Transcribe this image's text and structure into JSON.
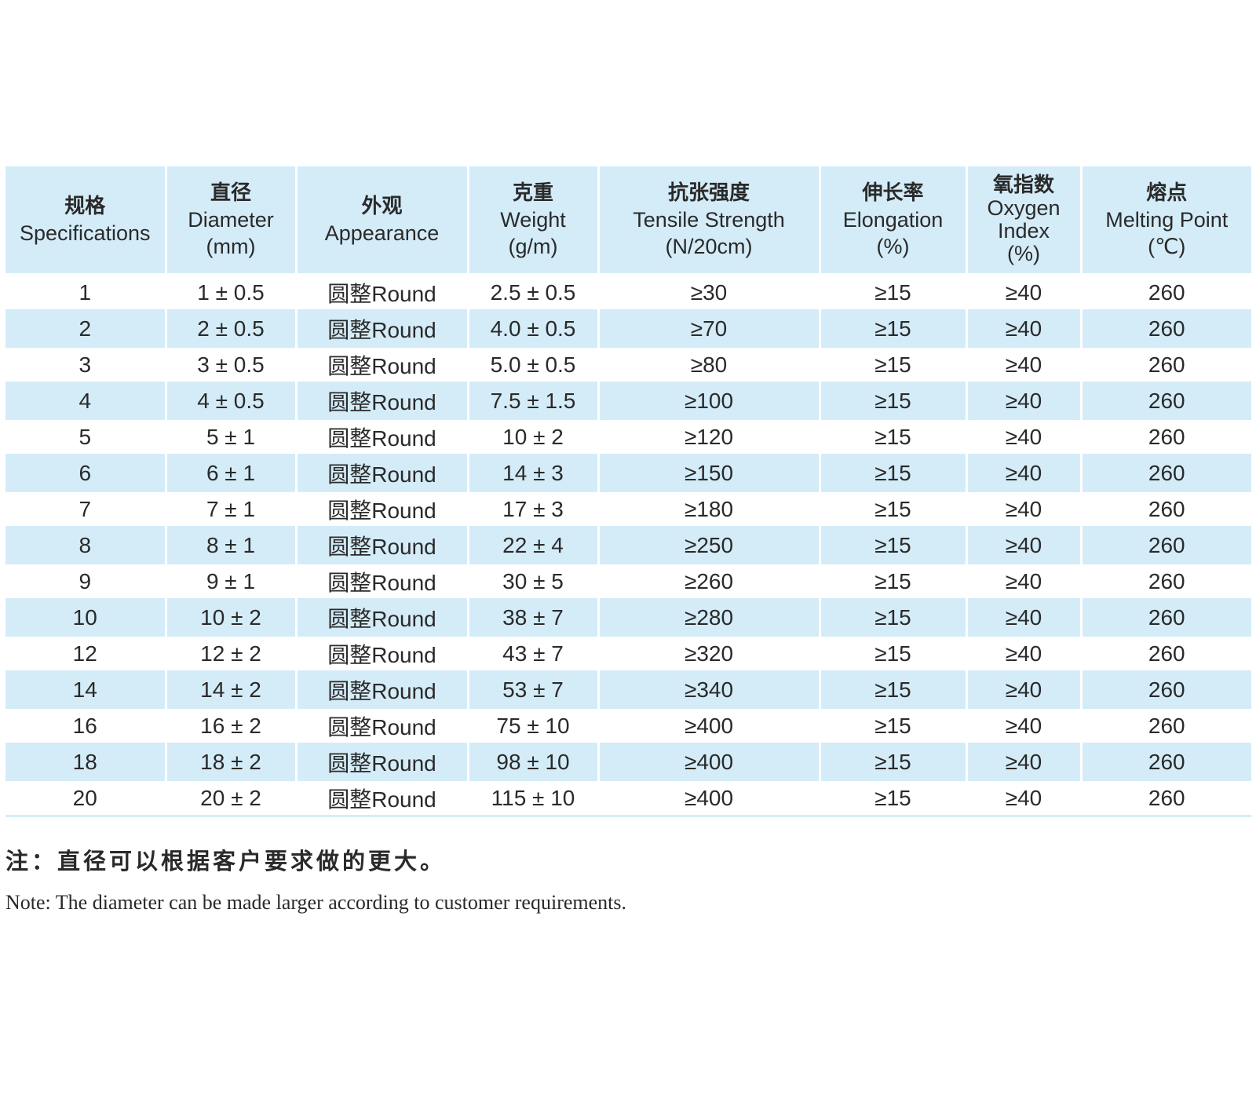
{
  "table": {
    "headers": [
      {
        "zh": "规格",
        "en": [
          "Specifications"
        ]
      },
      {
        "zh": "直径",
        "en": [
          "Diameter",
          "(mm)"
        ]
      },
      {
        "zh": "外观",
        "en": [
          "Appearance"
        ]
      },
      {
        "zh": "克重",
        "en": [
          "Weight",
          "(g/m)"
        ]
      },
      {
        "zh": "抗张强度",
        "en": [
          "Tensile  Strength",
          "(N/20cm)"
        ]
      },
      {
        "zh": "伸长率",
        "en": [
          "Elongation",
          "(%)"
        ]
      },
      {
        "zh": "氧指数",
        "en": [
          "Oxygen",
          "Index",
          "(%)"
        ]
      },
      {
        "zh": "熔点",
        "en": [
          "Melting Point",
          "(℃)"
        ]
      }
    ],
    "rows": [
      [
        "1",
        "1 ± 0.5",
        "圆整Round",
        "2.5 ± 0.5",
        "≥30",
        "≥15",
        "≥40",
        "260"
      ],
      [
        "2",
        "2 ± 0.5",
        "圆整Round",
        "4.0 ± 0.5",
        "≥70",
        "≥15",
        "≥40",
        "260"
      ],
      [
        "3",
        "3 ± 0.5",
        "圆整Round",
        "5.0 ±  0.5",
        "≥80",
        "≥15",
        "≥40",
        "260"
      ],
      [
        "4",
        "4 ± 0.5",
        "圆整Round",
        "7.5 ± 1.5",
        "≥100",
        "≥15",
        "≥40",
        "260"
      ],
      [
        "5",
        "5  ±  1",
        "圆整Round",
        "10 ± 2",
        "≥120",
        "≥15",
        "≥40",
        "260"
      ],
      [
        "6",
        "6 ± 1",
        "圆整Round",
        "14 ± 3",
        "≥150",
        "≥15",
        "≥40",
        "260"
      ],
      [
        "7",
        "7 ± 1",
        "圆整Round",
        "17 ± 3",
        "≥180",
        "≥15",
        "≥40",
        "260"
      ],
      [
        "8",
        "8 ± 1",
        "圆整Round",
        "22 ± 4",
        "≥250",
        "≥15",
        "≥40",
        "260"
      ],
      [
        "9",
        "9 ± 1",
        "圆整Round",
        "30 ± 5",
        "≥260",
        "≥15",
        "≥40",
        "260"
      ],
      [
        "10",
        "10 ± 2",
        "圆整Round",
        "38 ± 7",
        "≥280",
        "≥15",
        "≥40",
        "260"
      ],
      [
        "12",
        "12 ± 2",
        "圆整Round",
        "43 ± 7",
        "≥320",
        "≥15",
        "≥40",
        "260"
      ],
      [
        "14",
        "14 ± 2",
        "圆整Round",
        "53 ± 7",
        "≥340",
        "≥15",
        "≥40",
        "260"
      ],
      [
        "16",
        "16 ± 2",
        "圆整Round",
        "75 ± 10",
        "≥400",
        "≥15",
        "≥40",
        "260"
      ],
      [
        "18",
        "18 ± 2",
        "圆整Round",
        "98 ± 10",
        "≥400",
        "≥15",
        "≥40",
        "260"
      ],
      [
        "20",
        "20 ± 2",
        "圆整Round",
        "115 ± 10",
        "≥400",
        "≥15",
        "≥40",
        "260"
      ]
    ]
  },
  "notes": {
    "zh": "注：直径可以根据客户要求做的更大。",
    "en": "Note: The diameter can be made larger according to customer requirements."
  },
  "colors": {
    "header_bg": "#d4ecf8",
    "stripe_bg": "#d4ecf8",
    "text": "#2a2a2a"
  }
}
